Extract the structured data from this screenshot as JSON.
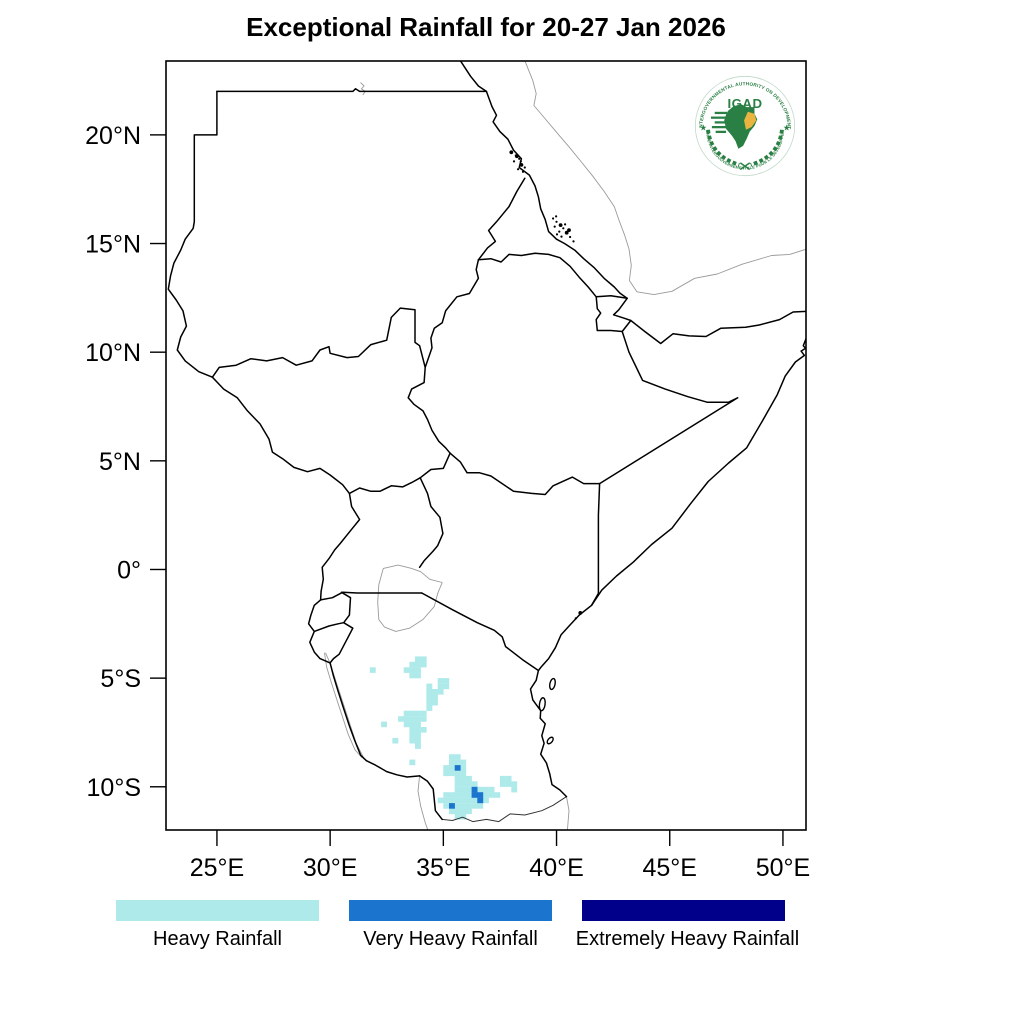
{
  "title": "Exceptional Rainfall for 20-27 Jan 2026",
  "map": {
    "x_ticks": [
      "25°E",
      "30°E",
      "35°E",
      "40°E",
      "45°E",
      "50°E"
    ],
    "x_tick_lons": [
      25,
      30,
      35,
      40,
      45,
      50
    ],
    "y_ticks": [
      "20°N",
      "15°N",
      "10°N",
      "5°N",
      "0°",
      "5°S",
      "10°S"
    ],
    "y_tick_lats": [
      20,
      15,
      10,
      5,
      0,
      -5,
      -10
    ],
    "extent": {
      "lon_min": 22.75,
      "lon_max": 51.03,
      "lat_min": -12.0,
      "lat_max": 23.4
    }
  },
  "legend": [
    {
      "label": "Heavy Rainfall",
      "color": "#aeeae9"
    },
    {
      "label": "Very Heavy Rainfall",
      "color": "#1b74cd"
    },
    {
      "label": "Extremely Heavy Rainfall",
      "color": "#00008b"
    }
  ],
  "logo": {
    "acronym": "IGAD",
    "top_text": "INTERGOVERNMENTAL AUTHORITY ON DEVELOPMENT",
    "bottom_text": "AUTORITÉ INTERGOUVERNEMENTALE POUR LE DÉVELOPPEMENT",
    "green": "#2a8044",
    "yellow": "#e9b440"
  },
  "rainfall_cells": {
    "cell_size_deg": 0.25,
    "heavy": [
      [
        33.75,
        -4.25
      ],
      [
        34.0,
        -4.25
      ],
      [
        33.5,
        -4.5
      ],
      [
        33.75,
        -4.5
      ],
      [
        34.0,
        -4.5
      ],
      [
        33.25,
        -4.75
      ],
      [
        33.5,
        -4.75
      ],
      [
        33.75,
        -4.75
      ],
      [
        33.5,
        -5.0
      ],
      [
        33.75,
        -5.0
      ],
      [
        34.75,
        -5.25
      ],
      [
        35.0,
        -5.25
      ],
      [
        34.75,
        -5.5
      ],
      [
        35.0,
        -5.5
      ],
      [
        34.75,
        -5.75
      ],
      [
        34.25,
        -5.5
      ],
      [
        34.25,
        -5.75
      ],
      [
        34.5,
        -5.75
      ],
      [
        34.25,
        -6.0
      ],
      [
        34.5,
        -6.0
      ],
      [
        34.25,
        -6.25
      ],
      [
        34.5,
        -6.25
      ],
      [
        34.25,
        -6.5
      ],
      [
        33.25,
        -6.75
      ],
      [
        33.5,
        -6.75
      ],
      [
        33.75,
        -6.75
      ],
      [
        34.0,
        -6.75
      ],
      [
        33.0,
        -7.0
      ],
      [
        33.25,
        -7.0
      ],
      [
        33.5,
        -7.0
      ],
      [
        33.75,
        -7.0
      ],
      [
        34.0,
        -7.0
      ],
      [
        33.25,
        -7.25
      ],
      [
        33.5,
        -7.25
      ],
      [
        33.75,
        -7.25
      ],
      [
        33.5,
        -7.5
      ],
      [
        33.75,
        -7.5
      ],
      [
        34.0,
        -7.5
      ],
      [
        33.5,
        -7.75
      ],
      [
        33.75,
        -7.75
      ],
      [
        33.5,
        -8.0
      ],
      [
        33.75,
        -8.0
      ],
      [
        33.75,
        -8.25
      ],
      [
        31.75,
        -4.75
      ],
      [
        32.25,
        -7.25
      ],
      [
        32.75,
        -8.0
      ],
      [
        33.5,
        -9.0
      ],
      [
        35.25,
        -8.75
      ],
      [
        35.5,
        -8.75
      ],
      [
        35.25,
        -9.0
      ],
      [
        35.5,
        -9.0
      ],
      [
        35.75,
        -9.0
      ],
      [
        35.0,
        -9.25
      ],
      [
        35.25,
        -9.25
      ],
      [
        35.75,
        -9.25
      ],
      [
        35.0,
        -9.5
      ],
      [
        35.25,
        -9.5
      ],
      [
        35.5,
        -9.5
      ],
      [
        35.75,
        -9.5
      ],
      [
        35.5,
        -9.75
      ],
      [
        35.75,
        -9.75
      ],
      [
        36.0,
        -9.75
      ],
      [
        37.5,
        -9.75
      ],
      [
        37.75,
        -9.75
      ],
      [
        37.5,
        -10.0
      ],
      [
        37.75,
        -10.0
      ],
      [
        38.0,
        -10.0
      ],
      [
        35.5,
        -10.0
      ],
      [
        35.75,
        -10.0
      ],
      [
        36.0,
        -10.0
      ],
      [
        36.25,
        -10.0
      ],
      [
        35.5,
        -10.25
      ],
      [
        35.75,
        -10.25
      ],
      [
        36.0,
        -10.25
      ],
      [
        36.5,
        -10.25
      ],
      [
        36.75,
        -10.25
      ],
      [
        37.0,
        -10.25
      ],
      [
        38.0,
        -10.25
      ],
      [
        35.0,
        -10.5
      ],
      [
        35.25,
        -10.5
      ],
      [
        35.5,
        -10.5
      ],
      [
        35.75,
        -10.5
      ],
      [
        36.0,
        -10.5
      ],
      [
        36.75,
        -10.5
      ],
      [
        37.0,
        -10.5
      ],
      [
        37.25,
        -10.5
      ],
      [
        34.75,
        -10.75
      ],
      [
        35.0,
        -10.75
      ],
      [
        35.25,
        -10.75
      ],
      [
        35.5,
        -10.75
      ],
      [
        35.75,
        -10.75
      ],
      [
        36.0,
        -10.75
      ],
      [
        36.25,
        -10.75
      ],
      [
        36.75,
        -10.75
      ],
      [
        35.0,
        -11.0
      ],
      [
        35.5,
        -11.0
      ],
      [
        35.75,
        -11.0
      ],
      [
        36.0,
        -11.0
      ],
      [
        36.25,
        -11.0
      ],
      [
        36.5,
        -11.0
      ],
      [
        35.25,
        -11.25
      ],
      [
        35.5,
        -11.25
      ],
      [
        35.75,
        -11.25
      ],
      [
        36.0,
        -11.25
      ],
      [
        35.5,
        -11.5
      ],
      [
        35.75,
        -11.5
      ]
    ],
    "very_heavy": [
      [
        35.5,
        -9.25
      ],
      [
        36.25,
        -10.25
      ],
      [
        36.25,
        -10.5
      ],
      [
        36.5,
        -10.5
      ],
      [
        36.5,
        -10.75
      ],
      [
        35.25,
        -11.0
      ]
    ],
    "extremely_heavy": []
  }
}
